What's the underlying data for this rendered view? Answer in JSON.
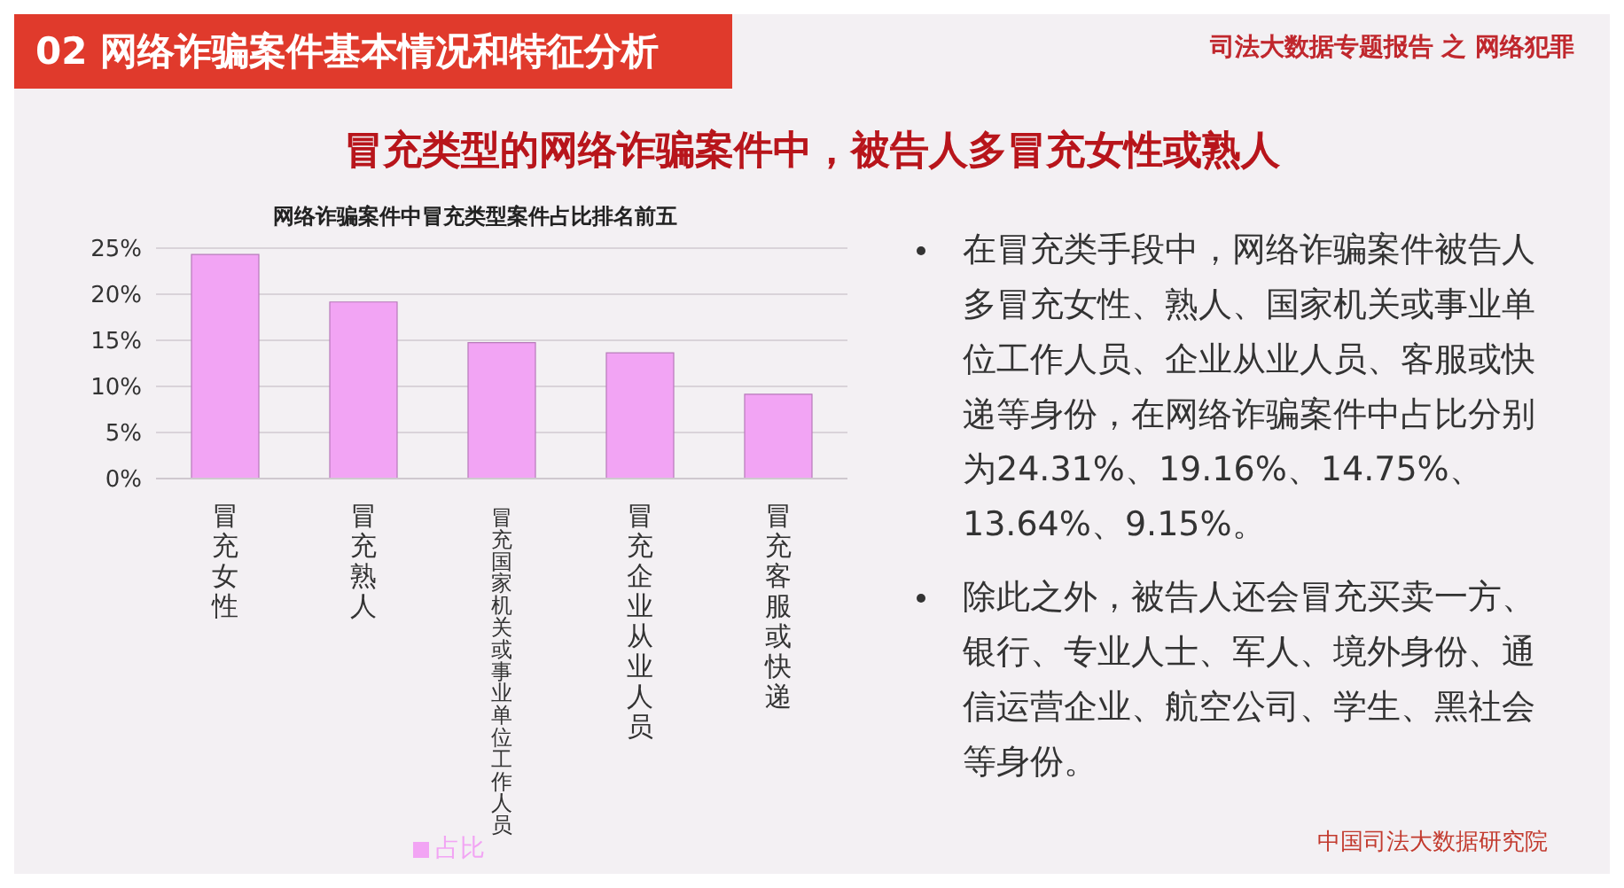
{
  "chart_data": {
    "type": "bar",
    "title": "网络诈骗案件中冒充类型案件占比排名前五",
    "subtitle": "冒充类型的网络诈骗案件中，被告人多冒充女性或熟人",
    "categories": [
      "冒充女性",
      "冒充熟人",
      "冒充国家机关或事业单位工作人员",
      "冒充企业从业人员",
      "冒充客服或快递"
    ],
    "series": [
      {
        "name": "占比",
        "color": "#f2a4f4",
        "values": [
          24.31,
          19.16,
          14.75,
          13.64,
          9.15
        ]
      }
    ],
    "ylim": [
      0,
      25
    ],
    "yticks": [
      {
        "value": 0,
        "label": "0%"
      },
      {
        "value": 5,
        "label": "5%"
      },
      {
        "value": 10,
        "label": "10%"
      },
      {
        "value": 15,
        "label": "15%"
      },
      {
        "value": 20,
        "label": "20%"
      },
      {
        "value": 25,
        "label": "25%"
      }
    ],
    "grid": "y",
    "legend": "bottom",
    "annotations": [
      "02 网络诈骗案件基本情况和特征分析",
      "司法大数据专题报告 之 网络犯罪",
      "在冒充类手段中，网络诈骗案件被告人多冒充女性、熟人、国家机关或事业单位工作人员、企业从业人员、客服或快递等身份，在网络诈骗案件中占比分别为24.31%、19.16%、14.75%、13.64%、9.15%。",
      "除此之外，被告人还会冒充买卖一方、银行、专业人士、军人、境外身份、通信运营企业、航空公司、学生、黑社会等身份。",
      "中国司法大数据研究院"
    ]
  }
}
